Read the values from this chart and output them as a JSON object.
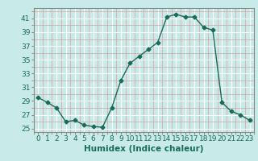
{
  "x": [
    0,
    1,
    2,
    3,
    4,
    5,
    6,
    7,
    8,
    9,
    10,
    11,
    12,
    13,
    14,
    15,
    16,
    17,
    18,
    19,
    20,
    21,
    22,
    23
  ],
  "y": [
    29.5,
    28.8,
    28.0,
    26.0,
    26.2,
    25.5,
    25.3,
    25.2,
    28.0,
    32.0,
    34.5,
    35.5,
    36.5,
    37.5,
    41.2,
    41.6,
    41.2,
    41.2,
    39.7,
    39.3,
    28.8,
    27.5,
    27.0,
    26.2
  ],
  "xlim": [
    -0.5,
    23.5
  ],
  "ylim": [
    24.5,
    42.5
  ],
  "yticks": [
    25,
    27,
    29,
    31,
    33,
    35,
    37,
    39,
    41
  ],
  "xticks": [
    0,
    1,
    2,
    3,
    4,
    5,
    6,
    7,
    8,
    9,
    10,
    11,
    12,
    13,
    14,
    15,
    16,
    17,
    18,
    19,
    20,
    21,
    22,
    23
  ],
  "xlabel": "Humidex (Indice chaleur)",
  "line_color": "#1a6b5a",
  "marker": "D",
  "marker_size": 2.5,
  "bg_color": "#c8eae8",
  "grid_major_color": "#ffffff",
  "grid_minor_color": "#d8a0a0",
  "xlabel_fontsize": 7.5,
  "tick_fontsize": 6.5,
  "tick_color": "#1a6b5a"
}
